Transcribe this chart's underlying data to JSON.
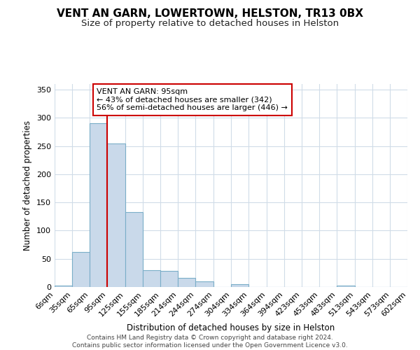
{
  "title": "VENT AN GARN, LOWERTOWN, HELSTON, TR13 0BX",
  "subtitle": "Size of property relative to detached houses in Helston",
  "xlabel": "Distribution of detached houses by size in Helston",
  "ylabel": "Number of detached properties",
  "bin_edges": [
    6,
    35,
    65,
    95,
    125,
    155,
    185,
    214,
    244,
    274,
    304,
    334,
    364,
    394,
    423,
    453,
    483,
    513,
    543,
    573,
    602
  ],
  "bar_heights": [
    2,
    62,
    291,
    254,
    133,
    30,
    29,
    16,
    10,
    0,
    5,
    0,
    0,
    0,
    0,
    0,
    3,
    0,
    0,
    0
  ],
  "bar_color": "#c9d9ea",
  "bar_edge_color": "#7aaec8",
  "vline_x": 95,
  "vline_color": "#cc0000",
  "ylim": [
    0,
    360
  ],
  "yticks": [
    0,
    50,
    100,
    150,
    200,
    250,
    300,
    350
  ],
  "annotation_text": "VENT AN GARN: 95sqm\n← 43% of detached houses are smaller (342)\n56% of semi-detached houses are larger (446) →",
  "annotation_box_color": "white",
  "annotation_box_edge_color": "#cc0000",
  "footer_line1": "Contains HM Land Registry data © Crown copyright and database right 2024.",
  "footer_line2": "Contains public sector information licensed under the Open Government Licence v3.0.",
  "background_color": "#ffffff",
  "grid_color": "#d0dce8",
  "tick_label_fontsize": 8,
  "title_fontsize": 11,
  "subtitle_fontsize": 9.5
}
